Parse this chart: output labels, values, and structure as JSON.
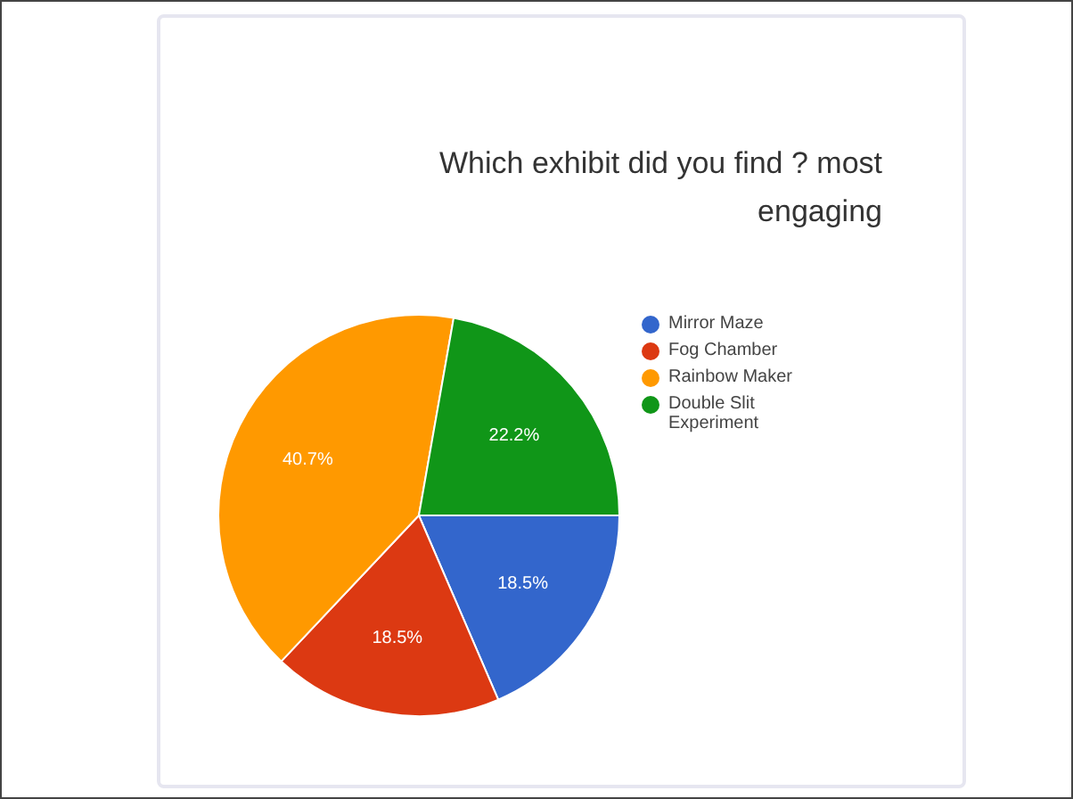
{
  "chart_data": {
    "type": "pie",
    "title": "Which exhibit did you find ? most engaging",
    "categories": [
      "Mirror Maze",
      "Fog Chamber",
      "Rainbow Maker",
      "Double Slit Experiment"
    ],
    "values": [
      18.5,
      18.5,
      40.7,
      22.2
    ],
    "value_labels": [
      "18.5%",
      "18.5%",
      "40.7%",
      "22.2%"
    ],
    "colors": [
      "#3366cc",
      "#dc3912",
      "#ff9900",
      "#109618"
    ],
    "legend": "right"
  }
}
